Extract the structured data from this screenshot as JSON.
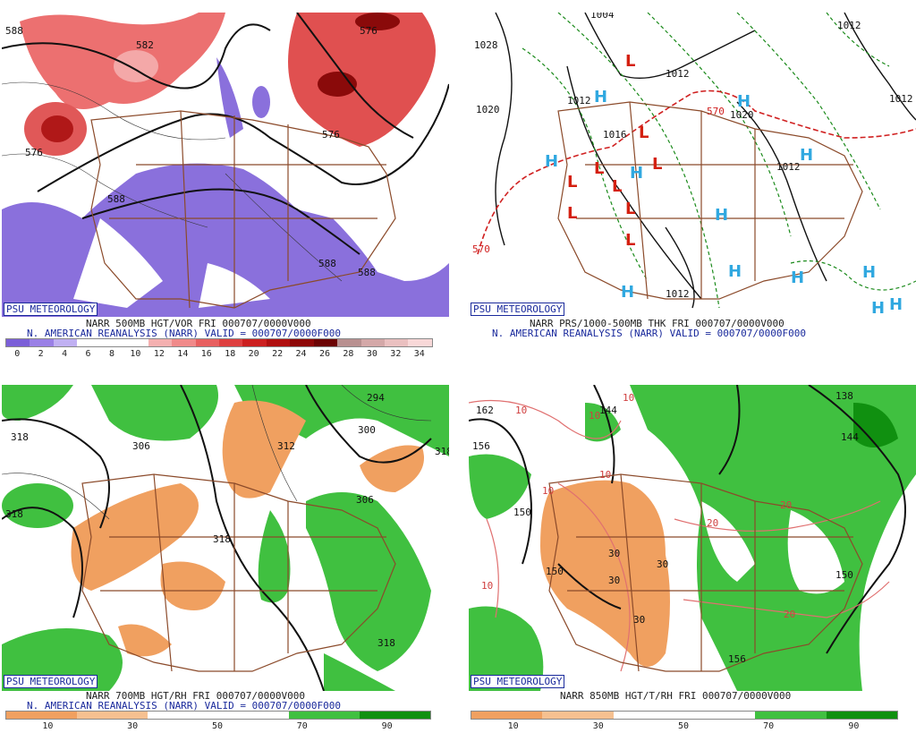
{
  "panels": [
    {
      "id": "p1",
      "badge": "PSU METEOROLOGY",
      "caption_line1": "NARR 500MB HGT/VOR FRI 000707/0000V000",
      "caption_line2": "N. AMERICAN REANALYSIS (NARR) VALID = 000707/0000F000",
      "colorbar_labels": [
        "0",
        "2",
        "4",
        "6",
        "8",
        "10",
        "12",
        "14",
        "16",
        "18",
        "20",
        "22",
        "24",
        "26",
        "28",
        "30",
        "32",
        "34"
      ],
      "colorbar_colors": [
        "#7b5fd8",
        "#9a80e6",
        "#c0b0f2",
        "#ffffff",
        "#ffffff",
        "#ffffff",
        "#f4b0b0",
        "#f08a8a",
        "#e86060",
        "#de4040",
        "#cc2020",
        "#b01010",
        "#8e0808",
        "#6c0404",
        "#b89090",
        "#d4a8a8",
        "#eac0c0",
        "#f8d8d8"
      ],
      "contour_labels": [
        "588",
        "582",
        "576",
        "576",
        "588",
        "588",
        "588",
        "576"
      ]
    },
    {
      "id": "p2",
      "badge": "PSU METEOROLOGY",
      "caption_line1": "NARR PRS/1000-500MB THK FRI 000707/0000V000",
      "caption_line2": "N. AMERICAN REANALYSIS (NARR) VALID = 000707/0000F000",
      "contour_labels": [
        "1028",
        "1020",
        "1004",
        "1012",
        "1012",
        "1012",
        "1016",
        "1020",
        "1012",
        "1012",
        "570",
        "570",
        "1004"
      ],
      "high_symbol": "H",
      "low_symbol": "L"
    },
    {
      "id": "p3",
      "badge": "PSU METEOROLOGY",
      "caption_line1": "NARR 700MB HGT/RH FRI 000707/0000V000",
      "caption_line2": "N. AMERICAN REANALYSIS (NARR) VALID = 000707/0000F000",
      "colorbar_labels": [
        "10",
        "30",
        "50",
        "70",
        "90"
      ],
      "colorbar_colors": [
        "#f0a060",
        "#f6c090",
        "#ffffff",
        "#ffffff",
        "#40c040",
        "#109010"
      ],
      "contour_labels": [
        "318",
        "306",
        "312",
        "318",
        "306",
        "300",
        "294",
        "318",
        "318",
        "318"
      ]
    },
    {
      "id": "p4",
      "badge": "PSU METEOROLOGY",
      "caption_line1": "NARR 850MB HGT/T/RH FRI 000707/0000V000",
      "colorbar_labels": [
        "10",
        "30",
        "50",
        "70",
        "90"
      ],
      "colorbar_colors": [
        "#f0a060",
        "#f6c090",
        "#ffffff",
        "#ffffff",
        "#40c040",
        "#109010"
      ],
      "contour_labels": [
        "162",
        "156",
        "150",
        "150",
        "144",
        "138",
        "150",
        "156",
        "144"
      ],
      "temp_labels": [
        "10",
        "10",
        "10",
        "10",
        "10",
        "10",
        "20",
        "20",
        "20",
        "30",
        "30",
        "30",
        "30"
      ]
    }
  ]
}
